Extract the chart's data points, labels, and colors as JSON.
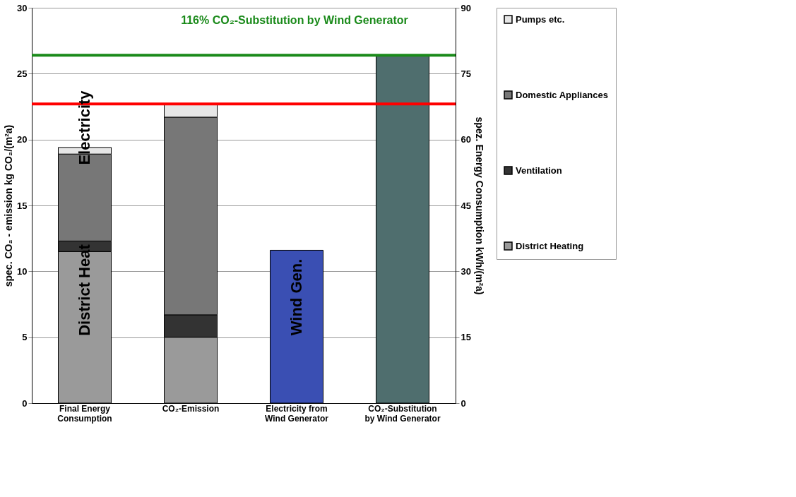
{
  "chart_data": {
    "type": "bar",
    "stacked": true,
    "categories": [
      "Final Energy Consumption",
      "CO₂-Emission",
      "Electricity from Wind Generator",
      "CO₂-Substitution by Wind Generator"
    ],
    "series": [
      {
        "name": "District Heating",
        "color": "#9a9a9a",
        "values": [
          11.5,
          5.0,
          null,
          null
        ]
      },
      {
        "name": "Ventilation",
        "color": "#333333",
        "values": [
          0.8,
          1.7,
          null,
          null
        ]
      },
      {
        "name": "Domestic Appliances",
        "color": "#777777",
        "values": [
          6.6,
          15.0,
          null,
          null
        ]
      },
      {
        "name": "Pumps etc.",
        "color": "#e6e6e6",
        "values": [
          0.5,
          1.0,
          null,
          null
        ]
      },
      {
        "color": "#3a4fb3",
        "values": [
          null,
          null,
          11.6,
          null
        ]
      },
      {
        "color": "#4f6e6e",
        "values": [
          null,
          null,
          null,
          26.4
        ]
      }
    ],
    "ylabel": "spec. CO₂ - emission kg CO₂/(m²a)",
    "y2label": "spez. Energy Consumption kWh/(m²a)",
    "ylim": [
      0,
      30
    ],
    "yticks": [
      0,
      5,
      10,
      15,
      20,
      25,
      30
    ],
    "y2lim": [
      0,
      90
    ],
    "y2ticks": [
      0,
      15,
      30,
      45,
      60,
      75,
      90
    ],
    "ref_lines": [
      {
        "axis": "y",
        "value": 22.7,
        "color": "#ff0000"
      },
      {
        "axis": "y",
        "value": 26.4,
        "color": "#1a8a1a"
      }
    ],
    "annotations": [
      "116% CO₂-Substitution by Wind Generator",
      "Electricity",
      "District Heat",
      "Wind Gen."
    ],
    "grid": "y",
    "legend": "right"
  }
}
